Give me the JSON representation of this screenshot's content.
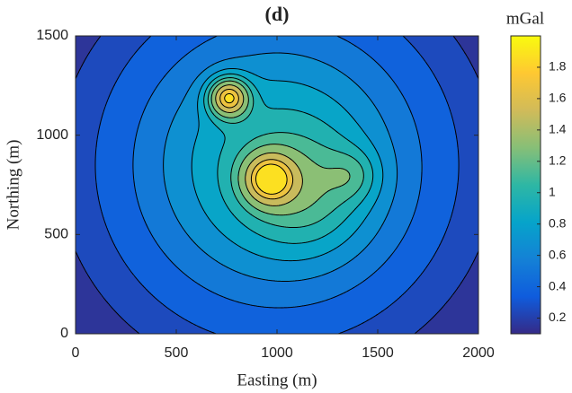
{
  "chart_data": {
    "type": "contour",
    "title": "(d)",
    "x_label": "Easting (m)",
    "y_label": "Northing (m)",
    "colorbar_label": "mGal",
    "xlim": [
      0,
      2000
    ],
    "ylim": [
      0,
      1500
    ],
    "xticks": [
      0,
      500,
      1000,
      1500,
      2000
    ],
    "yticks": [
      0,
      500,
      1000,
      1500
    ],
    "clim": [
      0.1,
      2.0
    ],
    "cticks": [
      0.2,
      0.4,
      0.6,
      0.8,
      1,
      1.2,
      1.4,
      1.6,
      1.8
    ],
    "levels": [
      0.2,
      0.3,
      0.45,
      0.6,
      0.75,
      0.9,
      1.05,
      1.2,
      1.4,
      1.6,
      1.75
    ],
    "background": 0.1,
    "anomalies": [
      {
        "x": 1000,
        "y": 850,
        "amplitude": 0.9,
        "width": 520
      },
      {
        "x": 1150,
        "y": 700,
        "amplitude": 0.3,
        "width": 200
      },
      {
        "x": 760,
        "y": 1190,
        "amplitude": 1.05,
        "width": 70
      },
      {
        "x": 960,
        "y": 780,
        "amplitude": 0.85,
        "width": 90
      },
      {
        "x": 1380,
        "y": 800,
        "amplitude": 0.25,
        "width": 90
      }
    ],
    "colormap": [
      "#352a87",
      "#0f5cdd",
      "#1481d6",
      "#06a4ca",
      "#2eb7a4",
      "#87bf77",
      "#d1bb59",
      "#fec832",
      "#f9fb0e"
    ],
    "line_color": "#000000"
  }
}
